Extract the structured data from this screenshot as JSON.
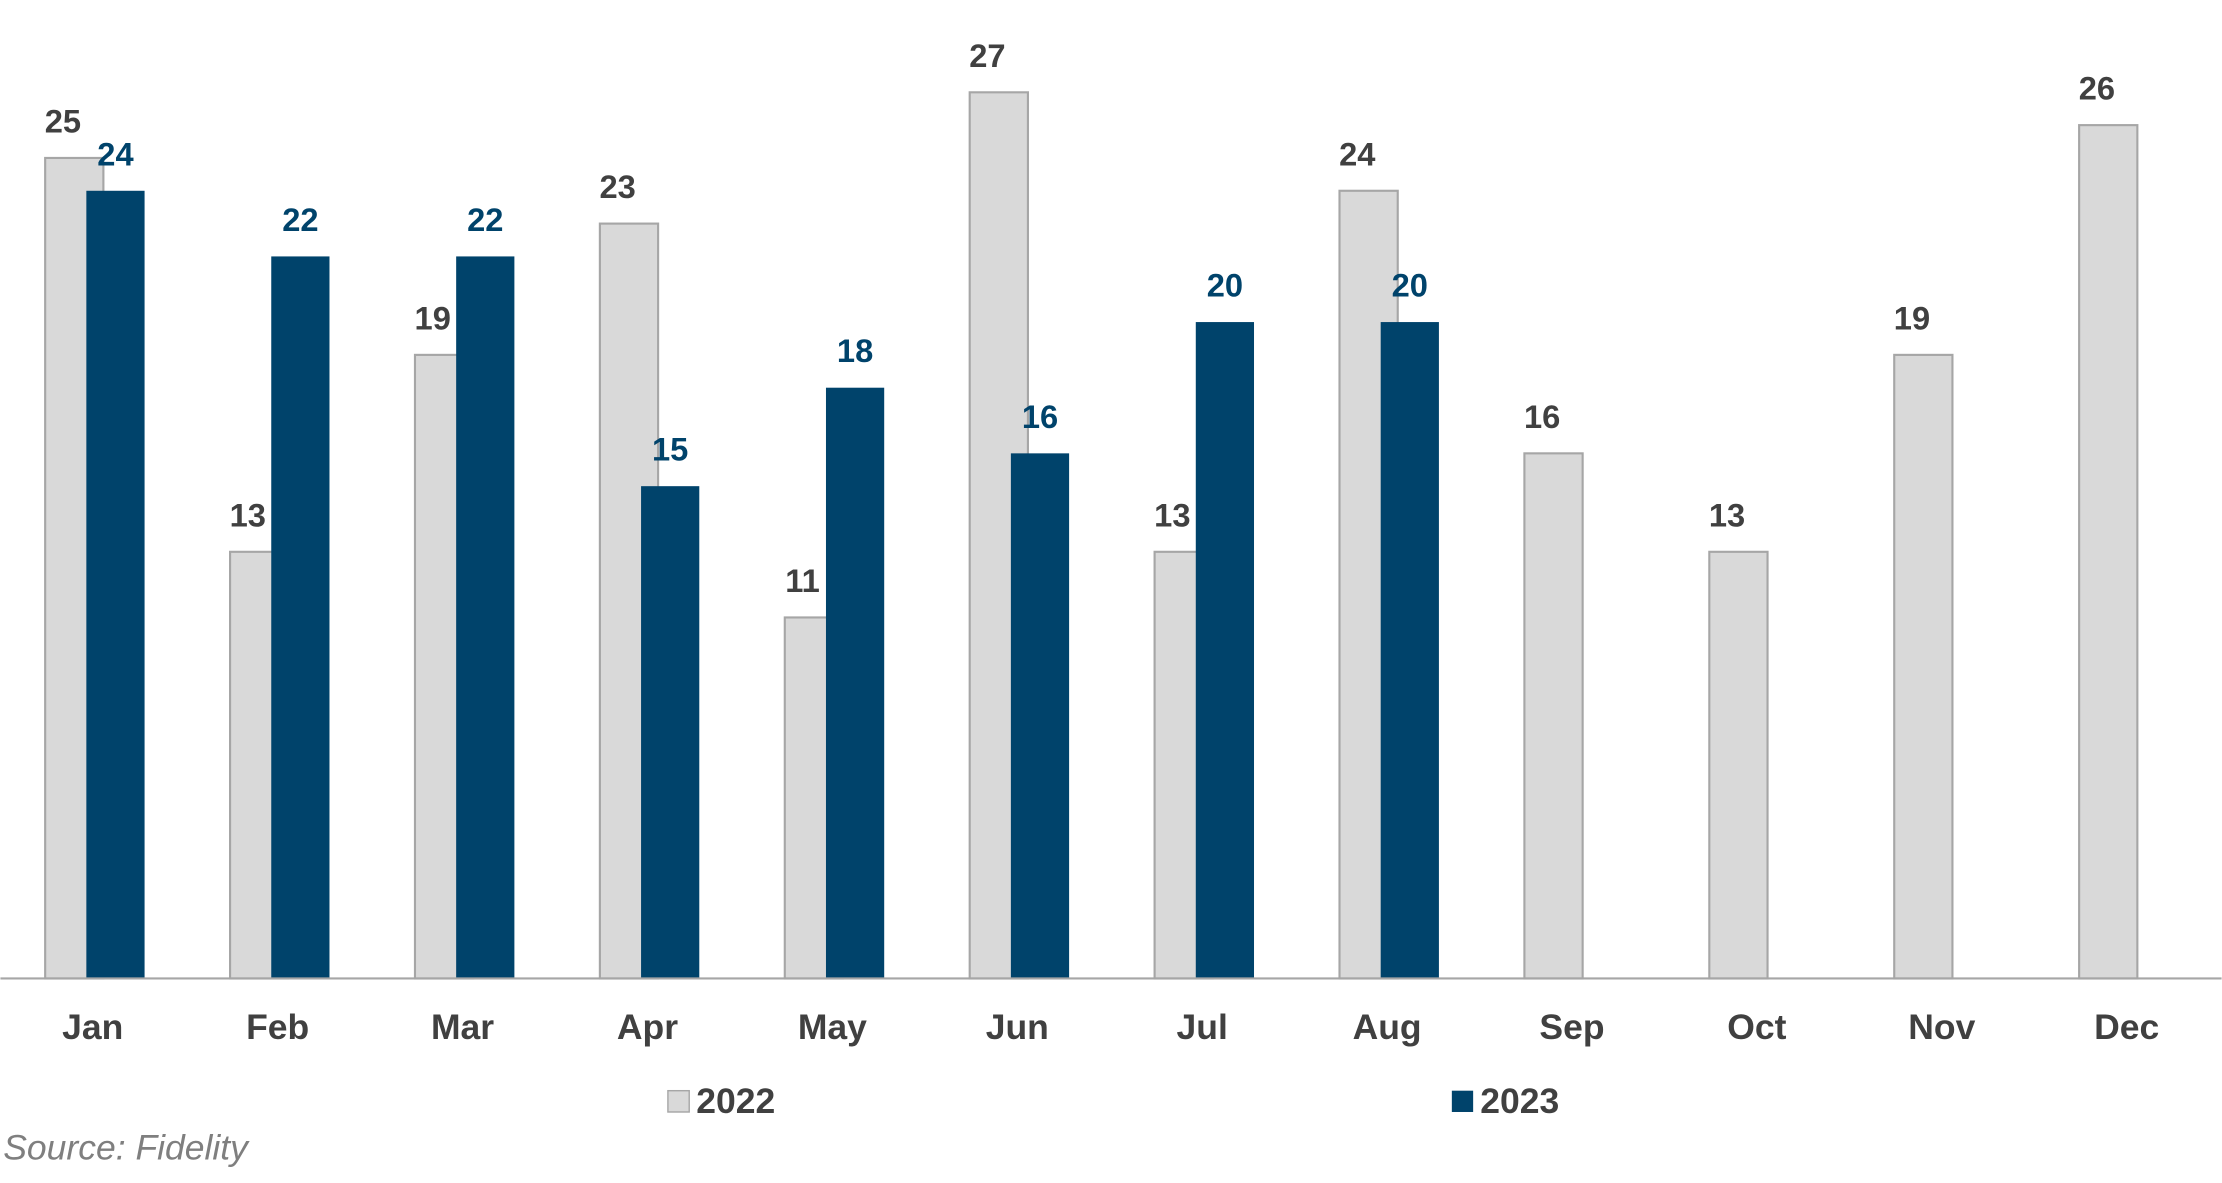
{
  "chart_data": {
    "type": "bar",
    "categories": [
      "Jan",
      "Feb",
      "Mar",
      "Apr",
      "May",
      "Jun",
      "Jul",
      "Aug",
      "Sep",
      "Oct",
      "Nov",
      "Dec"
    ],
    "series": [
      {
        "name": "2022",
        "color": "#d9d9d9",
        "values": [
          25,
          13,
          19,
          23,
          11,
          27,
          13,
          24,
          16,
          13,
          19,
          26
        ]
      },
      {
        "name": "2023",
        "color": "#00436b",
        "values": [
          24,
          22,
          22,
          15,
          18,
          16,
          20,
          20,
          null,
          null,
          null,
          null
        ]
      }
    ],
    "ylim": [
      0,
      27
    ],
    "source": "Source: Fidelity"
  }
}
